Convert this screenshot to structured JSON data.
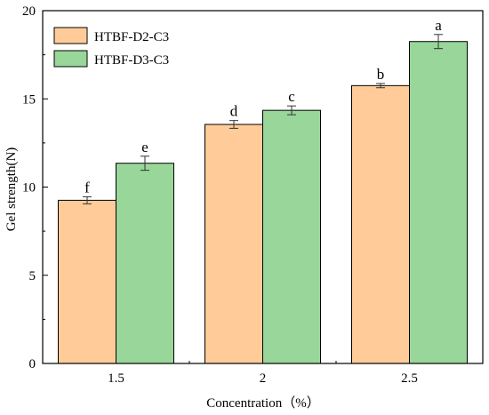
{
  "chart_data": {
    "type": "bar",
    "title": "",
    "xlabel": "Concentration（%）",
    "ylabel": "Gel strength(N)",
    "categories": [
      "1.5",
      "2",
      "2.5"
    ],
    "ylim": [
      0,
      20
    ],
    "yticks": [
      0,
      5,
      10,
      15,
      20
    ],
    "grid": false,
    "legend_position": "top-left",
    "series": [
      {
        "name": "HTBF-D2-C3",
        "color": "#FFCC99",
        "values": [
          9.25,
          13.55,
          15.75
        ],
        "errors": [
          0.2,
          0.22,
          0.12
        ],
        "labels": [
          "f",
          "d",
          "b"
        ]
      },
      {
        "name": "HTBF-D3-C3",
        "color": "#99D699",
        "values": [
          11.35,
          14.35,
          18.25
        ],
        "errors": [
          0.4,
          0.25,
          0.4
        ],
        "labels": [
          "e",
          "c",
          "a"
        ]
      }
    ]
  }
}
